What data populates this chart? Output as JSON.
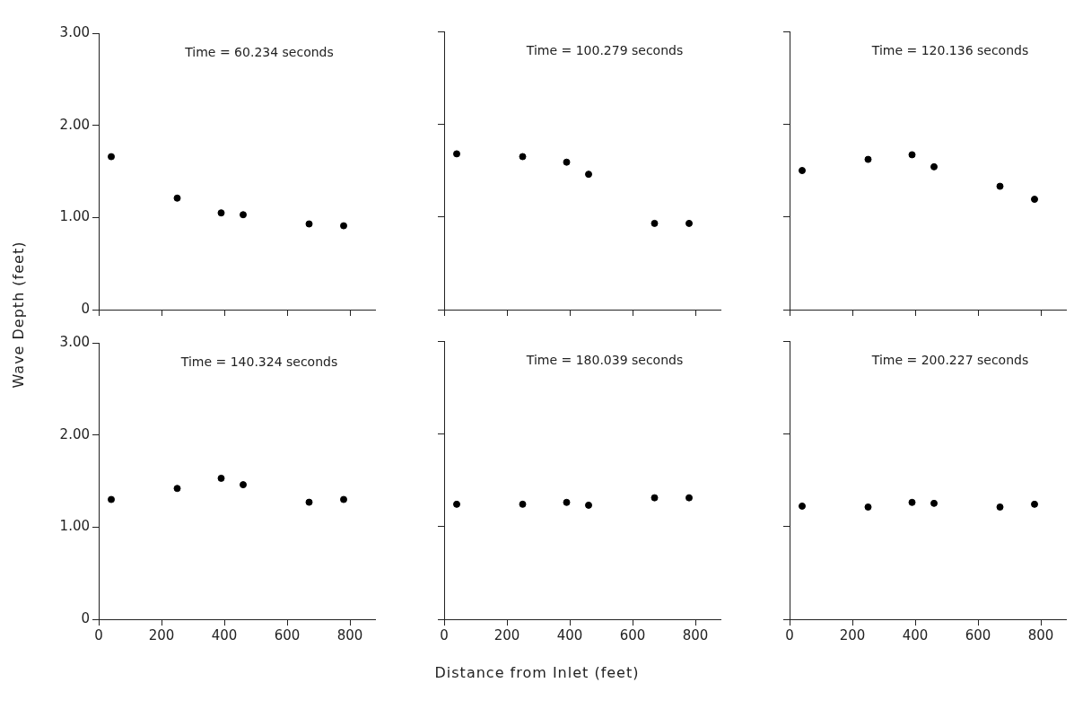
{
  "chart_data": [
    {
      "type": "scatter",
      "title": "Time = 60.234 seconds",
      "ylabel": "Wave Depth (feet)",
      "x": [
        40,
        250,
        390,
        460,
        670,
        780
      ],
      "series": [
        {
          "color": "#000000",
          "values": [
            1.66,
            1.21,
            1.05,
            1.03,
            0.93,
            0.91
          ]
        }
      ],
      "xlim": [
        0,
        880
      ],
      "xticks": [
        {
          "value": 0,
          "label": null
        },
        {
          "value": 200,
          "label": null
        },
        {
          "value": 400,
          "label": null
        },
        {
          "value": 600,
          "label": null
        },
        {
          "value": 800,
          "label": null
        }
      ],
      "ylim": [
        0,
        3
      ],
      "yticks": [
        0,
        {
          "value": 1,
          "label": "1.00"
        },
        {
          "value": 2,
          "label": "2.00"
        },
        {
          "value": 3,
          "label": "3.00"
        }
      ],
      "tick_labels": "y",
      "marker": "circle"
    },
    {
      "type": "scatter",
      "title": "Time = 100.279 seconds",
      "x": [
        40,
        250,
        390,
        460,
        670,
        780
      ],
      "series": [
        {
          "color": "#000000",
          "values": [
            1.68,
            1.65,
            1.59,
            1.46,
            0.93,
            0.93
          ]
        }
      ],
      "xlim": [
        0,
        880
      ],
      "xticks": [
        {
          "value": 0,
          "label": null
        },
        {
          "value": 200,
          "label": null
        },
        {
          "value": 400,
          "label": null
        },
        {
          "value": 600,
          "label": null
        },
        {
          "value": 800,
          "label": null
        }
      ],
      "ylim": [
        0,
        3
      ],
      "yticks": [
        {
          "value": 0,
          "label": null
        },
        {
          "value": 1,
          "label": null
        },
        {
          "value": 2,
          "label": null
        },
        {
          "value": 3,
          "label": null
        }
      ],
      "tick_labels": false,
      "marker": "circle"
    },
    {
      "type": "scatter",
      "title": "Time = 120.136 seconds",
      "x": [
        40,
        250,
        390,
        460,
        670,
        780
      ],
      "series": [
        {
          "color": "#000000",
          "values": [
            1.5,
            1.62,
            1.67,
            1.54,
            1.33,
            1.19
          ]
        }
      ],
      "xlim": [
        0,
        880
      ],
      "xticks": [
        {
          "value": 0,
          "label": null
        },
        {
          "value": 200,
          "label": null
        },
        {
          "value": 400,
          "label": null
        },
        {
          "value": 600,
          "label": null
        },
        {
          "value": 800,
          "label": null
        }
      ],
      "ylim": [
        0,
        3
      ],
      "yticks": [
        {
          "value": 0,
          "label": null
        },
        {
          "value": 1,
          "label": null
        },
        {
          "value": 2,
          "label": null
        },
        {
          "value": 3,
          "label": null
        }
      ],
      "tick_labels": false,
      "marker": "circle"
    },
    {
      "type": "scatter",
      "title": "Time = 140.324 seconds",
      "x": [
        40,
        250,
        390,
        460,
        670,
        780
      ],
      "series": [
        {
          "color": "#000000",
          "values": [
            1.3,
            1.42,
            1.53,
            1.46,
            1.27,
            1.3
          ]
        }
      ],
      "xlim": [
        0,
        880
      ],
      "xticks": [
        0,
        200,
        400,
        600,
        800
      ],
      "ylim": [
        0,
        3
      ],
      "yticks": [
        0,
        {
          "value": 1,
          "label": "1.00"
        },
        {
          "value": 2,
          "label": "2.00"
        },
        {
          "value": 3,
          "label": "3.00"
        }
      ],
      "marker": "circle"
    },
    {
      "type": "scatter",
      "title": "Time = 180.039 seconds",
      "xlabel": "Distance from Inlet (feet)",
      "x": [
        40,
        250,
        390,
        460,
        670,
        780
      ],
      "series": [
        {
          "color": "#000000",
          "values": [
            1.24,
            1.24,
            1.26,
            1.23,
            1.31,
            1.31
          ]
        }
      ],
      "xlim": [
        0,
        880
      ],
      "xticks": [
        0,
        200,
        400,
        600,
        800
      ],
      "ylim": [
        0,
        3
      ],
      "yticks": [
        {
          "value": 0,
          "label": null
        },
        {
          "value": 1,
          "label": null
        },
        {
          "value": 2,
          "label": null
        },
        {
          "value": 3,
          "label": null
        }
      ],
      "tick_labels": "x",
      "marker": "circle"
    },
    {
      "type": "scatter",
      "title": "Time = 200.227 seconds",
      "x": [
        40,
        250,
        390,
        460,
        670,
        780
      ],
      "series": [
        {
          "color": "#000000",
          "values": [
            1.22,
            1.21,
            1.26,
            1.25,
            1.21,
            1.24
          ]
        }
      ],
      "xlim": [
        0,
        880
      ],
      "xticks": [
        0,
        200,
        400,
        600,
        800
      ],
      "ylim": [
        0,
        3
      ],
      "yticks": [
        {
          "value": 0,
          "label": null
        },
        {
          "value": 1,
          "label": null
        },
        {
          "value": 2,
          "label": null
        },
        {
          "value": 3,
          "label": null
        }
      ],
      "tick_labels": "x",
      "marker": "circle"
    }
  ]
}
